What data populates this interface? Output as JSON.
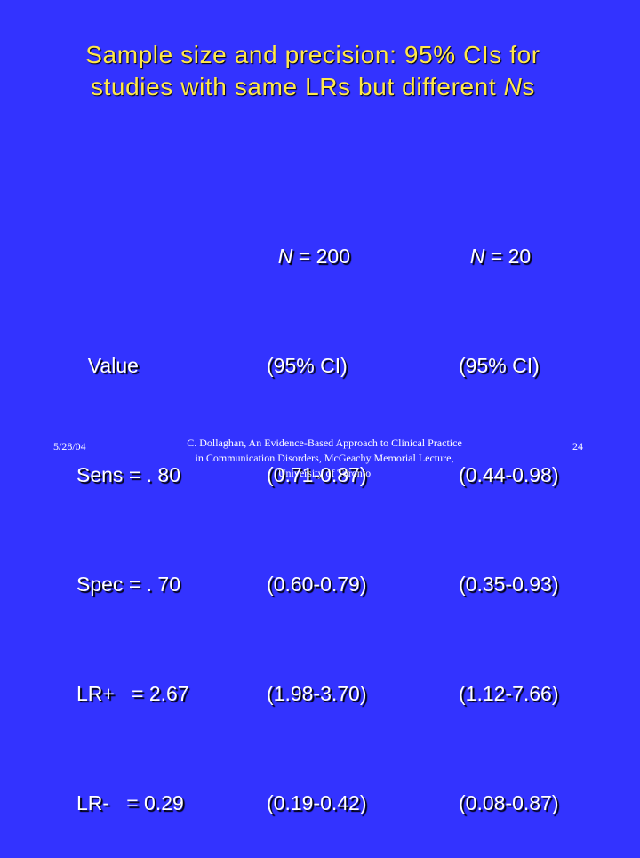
{
  "title": {
    "line1": "Sample size and precision: 95% CIs for",
    "line2_prefix": "studies with same LRs but  different ",
    "line2_italic": "N",
    "line2_suffix": "s"
  },
  "table": {
    "value_col": {
      "header": "Value",
      "rows": [
        "Sens = . 80",
        "Spec = . 70",
        "LR+   = 2.67",
        "LR-   = 0.29"
      ]
    },
    "n200_col": {
      "header_italic": "N",
      "header_rest": " = 200",
      "subheader": "(95% CI)",
      "rows": [
        "(0.71-0.87)",
        "(0.60-0.79)",
        "(1.98-3.70)",
        "(0.19-0.42)"
      ]
    },
    "n20_col": {
      "header_italic": "N",
      "header_rest": " = 20",
      "subheader": "(95% CI)",
      "rows": [
        "(0.44-0.98)",
        "(0.35-0.93)",
        "(1.12-7.66)",
        "(0.08-0.87)"
      ]
    }
  },
  "footer": {
    "date": "5/28/04",
    "credit_line1": "C. Dollaghan, An Evidence-Based Approach to Clinical Practice",
    "credit_line2": "in Communication Disorders, McGeachy Memorial Lecture,",
    "credit_line3": "University of Toronto",
    "page_number": "24"
  },
  "colors": {
    "background": "#3333ff",
    "title": "#ffe84a",
    "text": "#ffffff"
  }
}
